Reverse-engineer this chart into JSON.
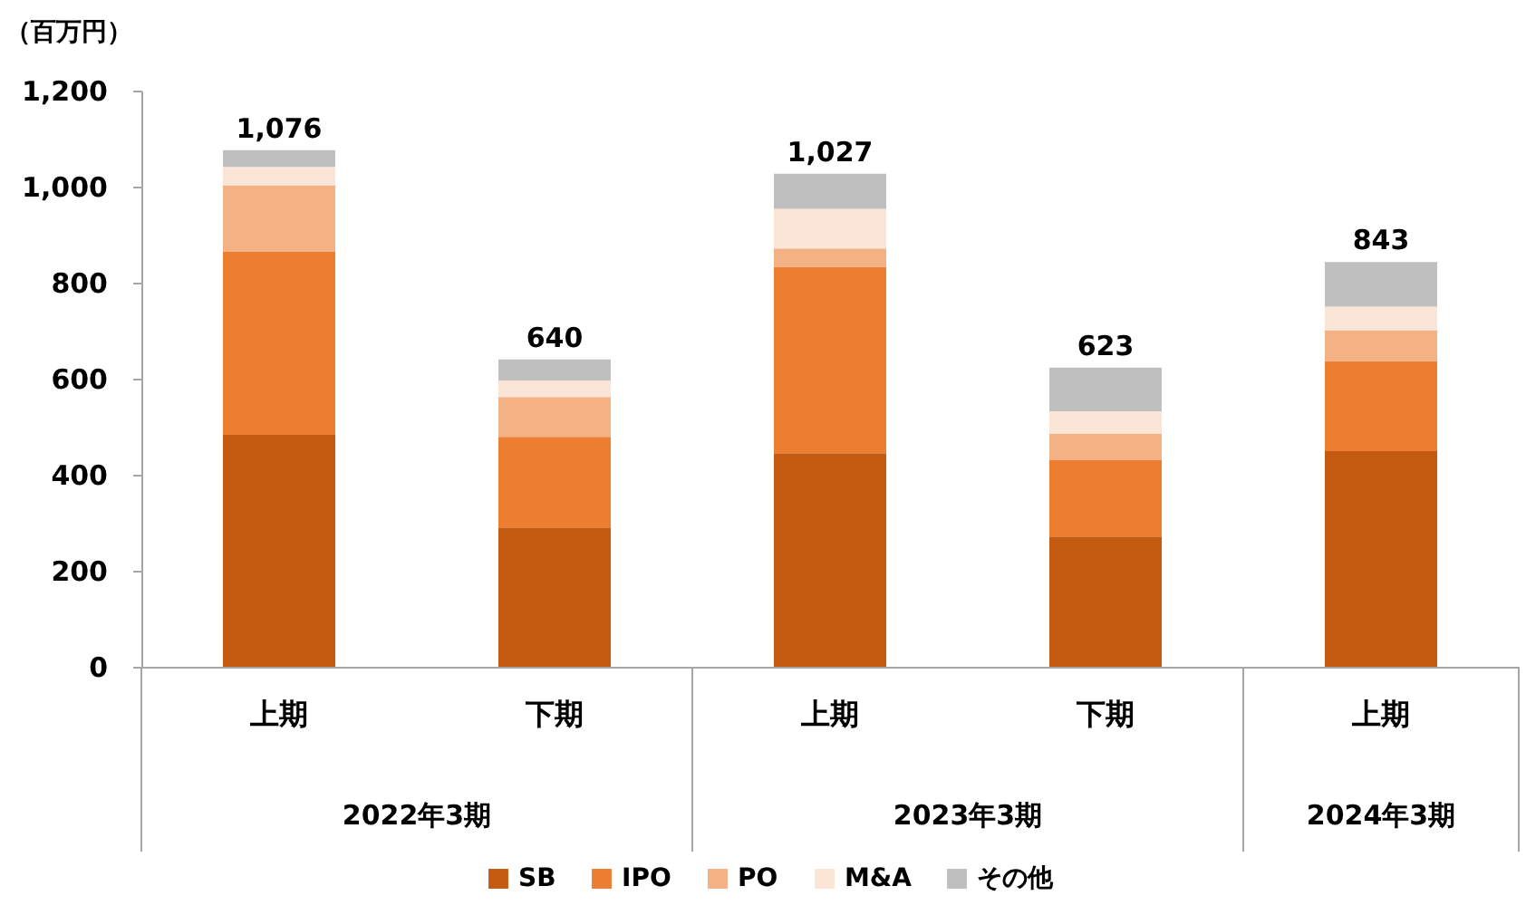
{
  "chart_data": {
    "type": "bar",
    "stacked": true,
    "ylabel": "（百万円）",
    "categories": [
      "上期",
      "下期",
      "上期",
      "下期",
      "上期"
    ],
    "annotations": [
      "2022年3期",
      "2023年3期",
      "2024年3期"
    ],
    "series": [
      {
        "name": "SB",
        "color": "#c55a11",
        "values": [
          483,
          290,
          445,
          271,
          449
        ]
      },
      {
        "name": "IPO",
        "color": "#ed7d31",
        "values": [
          381,
          189,
          388,
          159,
          188
        ]
      },
      {
        "name": "PO",
        "color": "#f4b183",
        "values": [
          139,
          83,
          38,
          56,
          64
        ]
      },
      {
        "name": "M&A",
        "color": "#fbe5d6",
        "values": [
          38,
          34,
          83,
          46,
          49
        ]
      },
      {
        "name": "その他",
        "color": "#bfbfbf",
        "values": [
          35,
          44,
          73,
          91,
          93
        ]
      }
    ],
    "totals": [
      "1,076",
      "640",
      "1,027",
      "623",
      "843"
    ],
    "ylim": [
      0,
      1200
    ],
    "yticks": [
      0,
      200,
      400,
      600,
      800,
      {
        "value": 1000,
        "label": "1,000"
      },
      {
        "value": 1200,
        "label": "1,200"
      }
    ],
    "grid": false,
    "legend": "bottom"
  }
}
